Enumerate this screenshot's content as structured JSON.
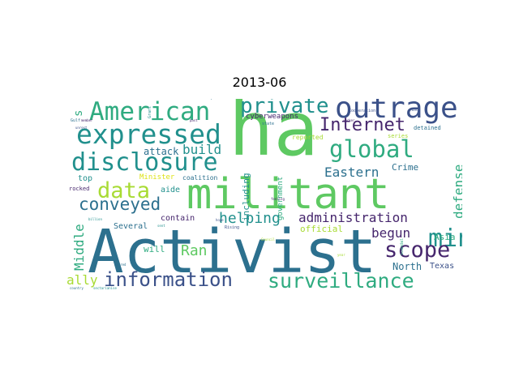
{
  "title": "2013-06",
  "words": {
    "ha": "ha",
    "activist": "Activist",
    "militant": "militant",
    "american": "American",
    "expressed": "expressed",
    "outrage": "outrage",
    "private": "private",
    "disclosure": "disclosure",
    "global": "global",
    "internet": "Internet",
    "data": "data",
    "mining": "mining",
    "scope": "scope",
    "surveillance": "surveillance",
    "information": "information",
    "conveyed": "conveyed",
    "helping": "helping",
    "administration": "administration",
    "eastern": "Eastern",
    "build": "build",
    "attack": "attack",
    "defense": "defense",
    "middle": "Middle",
    "ally": "ally",
    "ran": "Ran",
    "begun": "begun",
    "asia": "Asia",
    "north": "North",
    "texas": "Texas",
    "crime": "Crime",
    "several": "Several",
    "contain": "contain",
    "official": "official",
    "will": "will",
    "top": "top",
    "aide": "aide",
    "minister": "Minister",
    "coalition": "coalition",
    "including": "including",
    "cyberweapons": "cyberweapons",
    "reported": "reported",
    "series": "series",
    "detained": "detained",
    "rocked": "rocked",
    "s": "s",
    "corruption": "corruption",
    "state": "state",
    "grant": "Grant",
    "gulf": "Gulf",
    "member": "member",
    "past": "past",
    "worker": "worker",
    "cooperation": "Cooperation",
    "back": "back",
    "unrest": "unrest",
    "government": "government",
    "feeling": "feeling",
    "billion": "billion",
    "sent": "sent",
    "rising": "Rising",
    "council": "Council",
    "year": "year",
    "hatred": "hatred",
    "country": "country",
    "sectarianise": "sectarianise",
    "scandal": "scandal",
    "hope": "hope"
  },
  "colors": {
    "dark_purple": "#46266d",
    "indigo": "#3b5189",
    "teal_blue": "#2c708e",
    "teal": "#21908d",
    "green_teal": "#2fab80",
    "green": "#5ec962",
    "lime": "#a8db34",
    "yellow": "#dde318"
  }
}
